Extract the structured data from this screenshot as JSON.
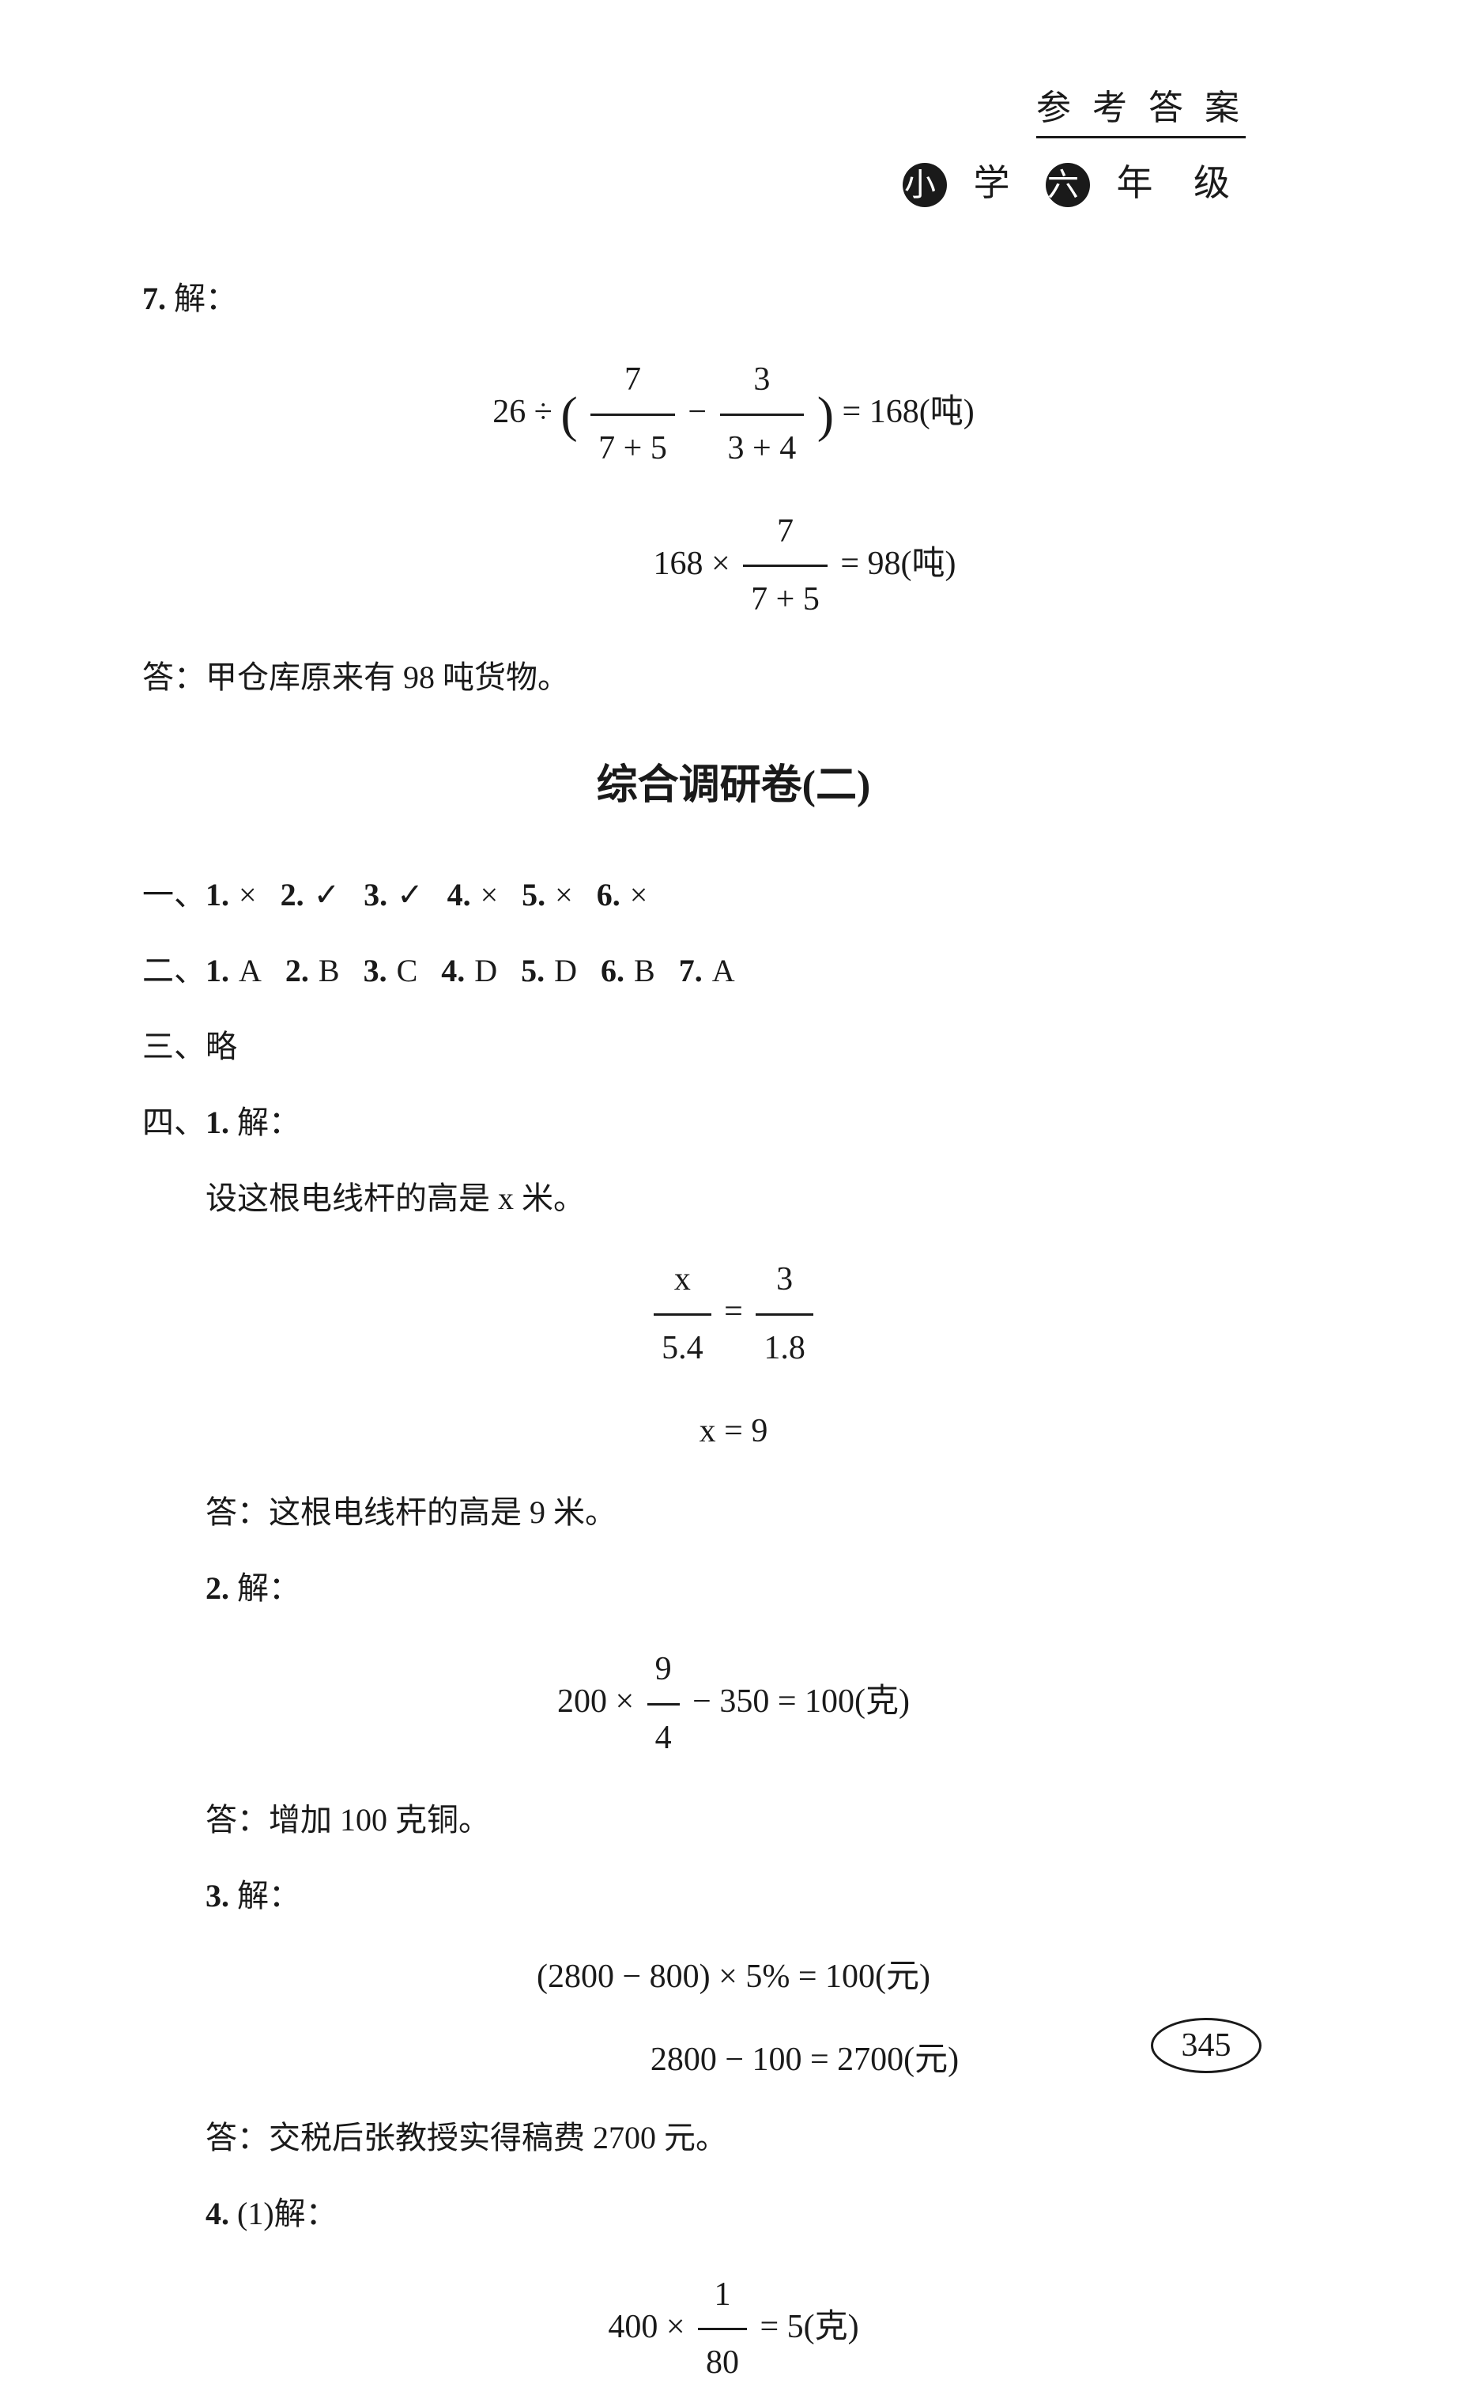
{
  "header": {
    "title": "参 考 答 案",
    "sub_chars": [
      "小",
      "学",
      "六",
      "年",
      "级"
    ]
  },
  "q7": {
    "label": "7.",
    "jie": "解：",
    "eq1_left": "26 ÷",
    "eq1_frac1_num": "7",
    "eq1_frac1_den": "7 + 5",
    "eq1_minus": "−",
    "eq1_frac2_num": "3",
    "eq1_frac2_den": "3 + 4",
    "eq1_right": "= 168(吨)",
    "eq2_left": "168 ×",
    "eq2_frac_num": "7",
    "eq2_frac_den": "7 + 5",
    "eq2_right": "= 98(吨)",
    "answer": "答：甲仓库原来有 98 吨货物。"
  },
  "section_title": "综合调研卷(二)",
  "part1": {
    "prefix": "一、",
    "items": [
      {
        "n": "1.",
        "v": "×"
      },
      {
        "n": "2.",
        "v": "✓"
      },
      {
        "n": "3.",
        "v": "✓"
      },
      {
        "n": "4.",
        "v": "×"
      },
      {
        "n": "5.",
        "v": "×"
      },
      {
        "n": "6.",
        "v": "×"
      }
    ]
  },
  "part2": {
    "prefix": "二、",
    "items": [
      {
        "n": "1.",
        "v": "A"
      },
      {
        "n": "2.",
        "v": "B"
      },
      {
        "n": "3.",
        "v": "C"
      },
      {
        "n": "4.",
        "v": "D"
      },
      {
        "n": "5.",
        "v": "D"
      },
      {
        "n": "6.",
        "v": "B"
      },
      {
        "n": "7.",
        "v": "A"
      }
    ]
  },
  "part3": {
    "prefix": "三、",
    "text": "略"
  },
  "part4": {
    "prefix": "四、",
    "q1": {
      "label": "1.",
      "jie": "解：",
      "setup": "设这根电线杆的高是 x 米。",
      "eq1_lhs_num": "x",
      "eq1_lhs_den": "5.4",
      "eq1_eq": "=",
      "eq1_rhs_num": "3",
      "eq1_rhs_den": "1.8",
      "eq2": "x = 9",
      "answer": "答：这根电线杆的高是 9 米。"
    },
    "q2": {
      "label": "2.",
      "jie": "解：",
      "eq_left": "200 ×",
      "eq_frac_num": "9",
      "eq_frac_den": "4",
      "eq_right": "− 350 = 100(克)",
      "answer": "答：增加 100 克铜。"
    },
    "q3": {
      "label": "3.",
      "jie": "解：",
      "eq1": "(2800 − 800) × 5% = 100(元)",
      "eq2": "2800 − 100 = 2700(元)",
      "answer": "答：交税后张教授实得稿费 2700 元。"
    },
    "q4": {
      "label": "4.",
      "sub": "(1)解：",
      "eq_left": "400 ×",
      "eq_frac_num": "1",
      "eq_frac_den": "80",
      "eq_right": "= 5(克)"
    }
  },
  "page_number": "345"
}
